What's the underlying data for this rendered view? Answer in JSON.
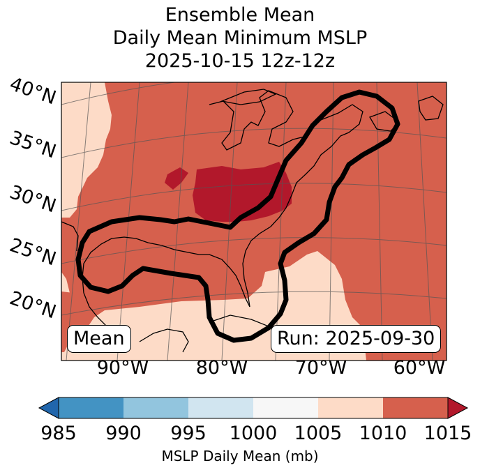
{
  "title": {
    "line1": "Ensemble Mean",
    "line2": "Daily Mean Minimum MSLP",
    "line3": "2025-10-15 12z-12z"
  },
  "map": {
    "lat_labels": [
      "40°N",
      "35°N",
      "30°N",
      "25°N",
      "20°N"
    ],
    "lon_labels": [
      "90°W",
      "80°W",
      "70°W",
      "60°W"
    ],
    "mean_box": "Mean",
    "run_box": "Run: 2025-09-30",
    "region_fills": {
      "1005_1010": "#fddbc7",
      "1010_1015": "#d6604d",
      "above_1015": "#b2182b"
    },
    "outline_color": "#000000"
  },
  "colorbar": {
    "ticks": [
      "985",
      "990",
      "995",
      "1000",
      "1005",
      "1010",
      "1015"
    ],
    "colors": [
      "#2166ac",
      "#4393c3",
      "#92c5de",
      "#d1e5f0",
      "#f7f7f7",
      "#fddbc7",
      "#d6604d",
      "#b2182b"
    ],
    "label": "MSLP Daily Mean (mb)"
  }
}
